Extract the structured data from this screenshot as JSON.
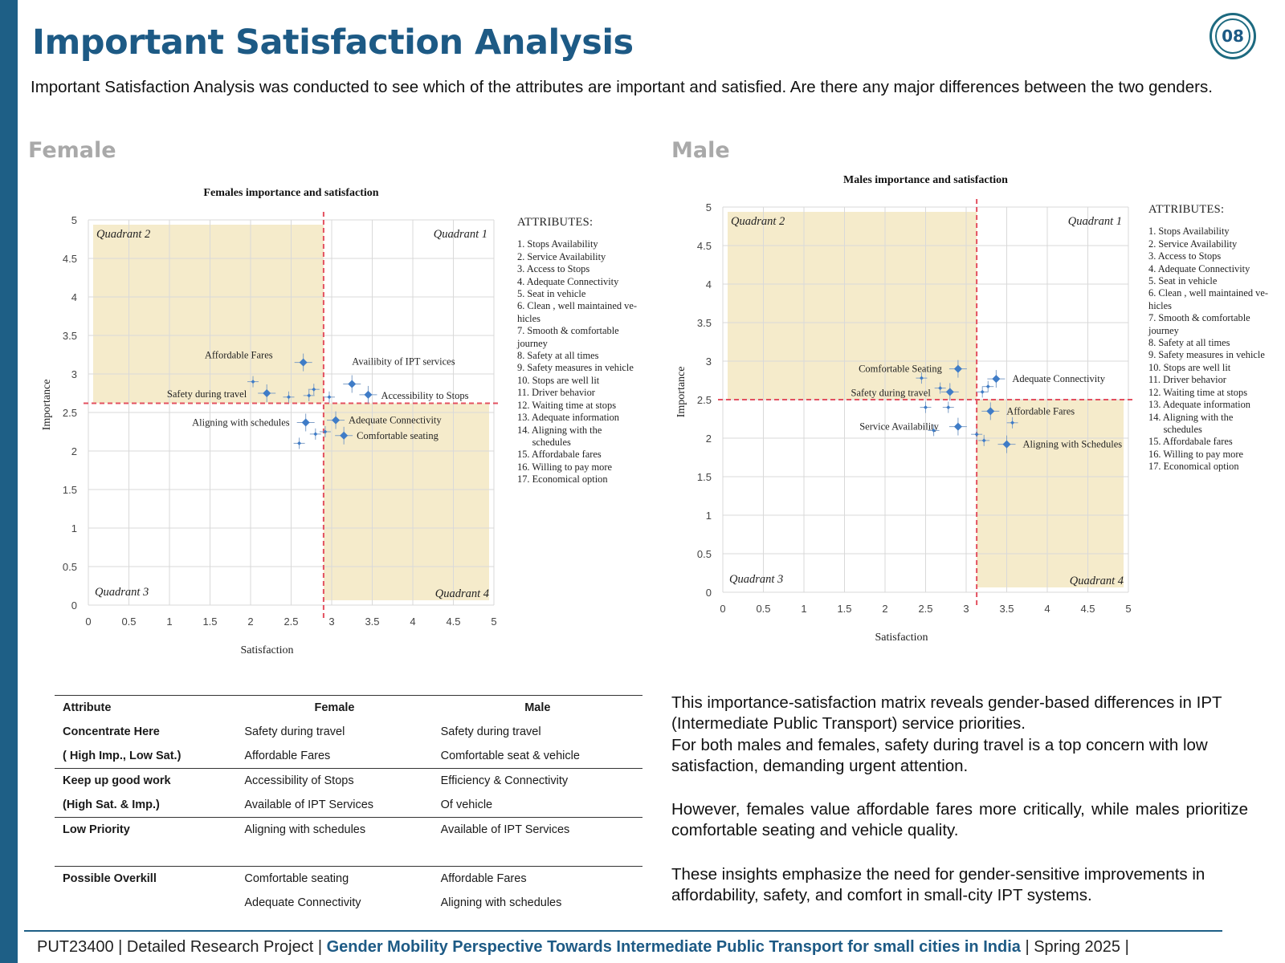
{
  "page": {
    "title": "Important Satisfaction Analysis",
    "page_number": "08",
    "intro": "Important Satisfaction Analysis was conducted to see which of the attributes are important and satisfied. Are there any major differences between the two genders.",
    "female_label": "Female",
    "male_label": "Male"
  },
  "attributes": {
    "heading": "ATTRIBUTES:",
    "items": [
      "1. Stops Availability",
      "2. Service Availability",
      "3. Access to Stops",
      "4. Adequate Connectivity",
      "5. Seat in vehicle",
      "6. Clean , well maintained ve-\nhicles",
      "7. Smooth & comfortable\njourney",
      "8. Safety at all times",
      "9. Safety measures in vehicle",
      "10. Stops are well lit",
      "11. Driver behavior",
      "12. Waiting time at stops",
      "13. Adequate information",
      "14. Aligning with the\n      schedules",
      "15. Affordabale fares",
      "16. Willing to pay more",
      "17. Economical option"
    ]
  },
  "chart_data": [
    {
      "type": "scatter",
      "title": "Females importance and satisfaction",
      "xlabel": "Satisfaction",
      "ylabel": "Importance",
      "xlim": [
        0,
        5
      ],
      "ylim": [
        0,
        5
      ],
      "xticks": [
        "0",
        "0.5",
        "1",
        "1.5",
        "2",
        "2.5",
        "3",
        "3.5",
        "4",
        "4.5",
        "5"
      ],
      "yticks": [
        "0",
        "0.5",
        "1",
        "1.5",
        "2",
        "2.5",
        "3",
        "3.5",
        "4",
        "4.5",
        "5"
      ],
      "grid": true,
      "divider_x": 2.9,
      "divider_y": 2.62,
      "quadrants": [
        "Quadrant 1",
        "Quadrant 2",
        "Quadrant 3",
        "Quadrant 4"
      ],
      "points": [
        {
          "x": 2.65,
          "y": 3.15,
          "label": "Affordable Fares"
        },
        {
          "x": 2.2,
          "y": 2.75,
          "label": "Safety during travel"
        },
        {
          "x": 3.25,
          "y": 2.87,
          "label": "Availibity of IPT services"
        },
        {
          "x": 3.45,
          "y": 2.73,
          "label": "Accessibility to Stops"
        },
        {
          "x": 2.68,
          "y": 2.37,
          "label": "Aligning with schedules"
        },
        {
          "x": 3.05,
          "y": 2.4,
          "label": "Adequate Connectivity"
        },
        {
          "x": 3.15,
          "y": 2.2,
          "label": "Comfortable seating"
        },
        {
          "x": 2.03,
          "y": 2.9,
          "label": ""
        },
        {
          "x": 2.47,
          "y": 2.7,
          "label": ""
        },
        {
          "x": 2.72,
          "y": 2.72,
          "label": ""
        },
        {
          "x": 2.78,
          "y": 2.8,
          "label": ""
        },
        {
          "x": 2.97,
          "y": 2.7,
          "label": ""
        },
        {
          "x": 2.6,
          "y": 2.1,
          "label": ""
        },
        {
          "x": 2.8,
          "y": 2.22,
          "label": ""
        },
        {
          "x": 2.92,
          "y": 2.25,
          "label": ""
        }
      ]
    },
    {
      "type": "scatter",
      "title": "Males importance and satisfaction",
      "xlabel": "Satisfaction",
      "ylabel": "Importance",
      "xlim": [
        0,
        5
      ],
      "ylim": [
        0,
        5
      ],
      "xticks": [
        "0",
        "0.5",
        "1",
        "1.5",
        "2",
        "2.5",
        "3",
        "3.5",
        "4",
        "4.5",
        "5"
      ],
      "yticks": [
        "0",
        "0.5",
        "1",
        "1.5",
        "2",
        "2.5",
        "3",
        "3.5",
        "4",
        "4.5",
        "5"
      ],
      "grid": true,
      "divider_x": 3.13,
      "divider_y": 2.5,
      "quadrants": [
        "Quadrant 1",
        "Quadrant 2",
        "Quadrant 3",
        "Quadrant 4"
      ],
      "points": [
        {
          "x": 2.9,
          "y": 2.9,
          "label": "Comfortable Seating"
        },
        {
          "x": 2.8,
          "y": 2.6,
          "label": "Safety during travel"
        },
        {
          "x": 2.9,
          "y": 2.15,
          "label": "Service Availability"
        },
        {
          "x": 3.37,
          "y": 2.77,
          "label": "Adequate Connectivity"
        },
        {
          "x": 3.3,
          "y": 2.35,
          "label": "Affordable Fares"
        },
        {
          "x": 3.5,
          "y": 1.92,
          "label": "Aligning with Schedules"
        },
        {
          "x": 2.45,
          "y": 2.78,
          "label": ""
        },
        {
          "x": 2.68,
          "y": 2.65,
          "label": ""
        },
        {
          "x": 2.78,
          "y": 2.4,
          "label": ""
        },
        {
          "x": 2.5,
          "y": 2.4,
          "label": ""
        },
        {
          "x": 2.6,
          "y": 2.1,
          "label": ""
        },
        {
          "x": 3.2,
          "y": 2.6,
          "label": ""
        },
        {
          "x": 3.27,
          "y": 2.67,
          "label": ""
        },
        {
          "x": 3.57,
          "y": 2.2,
          "label": ""
        },
        {
          "x": 3.22,
          "y": 1.97,
          "label": ""
        },
        {
          "x": 3.13,
          "y": 2.05,
          "label": ""
        }
      ]
    }
  ],
  "table": {
    "headers": [
      "Attribute",
      "Female",
      "Male"
    ],
    "rows": [
      {
        "label": "Concentrate Here",
        "female": "Safety during travel",
        "male": "Safety during travel"
      },
      {
        "label": "( High Imp., Low Sat.)",
        "female": "Affordable Fares",
        "male": "Comfortable seat & vehicle"
      },
      {
        "label": "Keep up good work",
        "female": "Accessibility of Stops",
        "male": "Efficiency & Connectivity"
      },
      {
        "label": "(High Sat. & Imp.)",
        "female": "Available of IPT Services",
        "male": "Of vehicle"
      },
      {
        "label": "Low Priority",
        "female": "Aligning with schedules",
        "male": "Available of IPT Services"
      },
      {
        "label": "",
        "female": "",
        "male": ""
      },
      {
        "label": "Possible Overkill",
        "female": "Comfortable seating",
        "male": "Affordable Fares"
      },
      {
        "label": "",
        "female": "Adequate Connectivity",
        "male": "Aligning with schedules"
      }
    ]
  },
  "summary": {
    "p1": "This importance-satisfaction matrix reveals gender-based differences in IPT (Intermediate Public Transport) service priorities.",
    "p2": "For both males and females, safety during travel is a top concern with low satisfaction, demanding urgent attention.",
    "p3": "However, females value affordable fares more critically, while males prioritize comfortable seating and vehicle quality.",
    "p4": "These insights emphasize the need for gender-sensitive improvements in affordability, safety, and comfort in small-city IPT systems."
  },
  "footer": {
    "code": "PUT23400 | Detailed Research Project |",
    "topic": "Gender Mobility Perspective Towards Intermediate Public Transport for small cities in India",
    "term": "| Spring 2025  |"
  },
  "colors": {
    "brand": "#1d5a85",
    "quadrant_fill": "#f5ebcb",
    "divider": "#e3505f",
    "marker": "#3f7cc7"
  }
}
